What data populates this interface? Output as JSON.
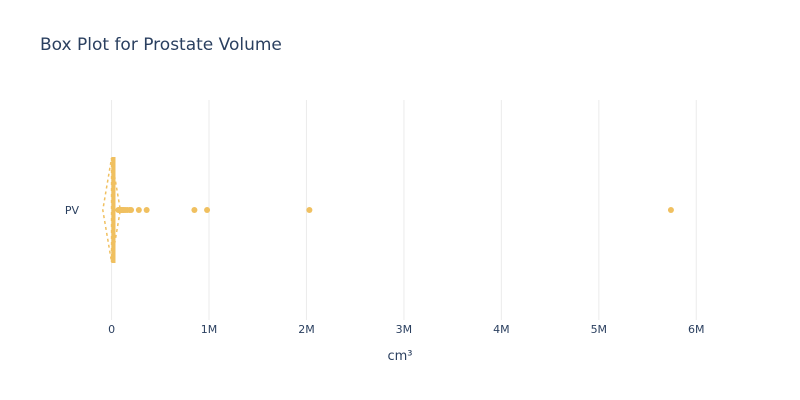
{
  "chart_data": {
    "type": "box",
    "orientation": "horizontal",
    "title": "Box Plot for Prostate Volume",
    "xlabel": "cm³",
    "ylabel": "",
    "xlim": [
      -170000,
      6500000
    ],
    "x_ticks": [
      {
        "value": 0,
        "label": "0"
      },
      {
        "value": 1000000,
        "label": "1M"
      },
      {
        "value": 2000000,
        "label": "2M"
      },
      {
        "value": 3000000,
        "label": "3M"
      },
      {
        "value": 4000000,
        "label": "4M"
      },
      {
        "value": 5000000,
        "label": "5M"
      },
      {
        "value": 6000000,
        "label": "6M"
      }
    ],
    "grid": true,
    "color": "#f0c060",
    "series": [
      {
        "category": "PV",
        "q1": 8000,
        "median": 15000,
        "q3": 30000,
        "lower_fence": 0,
        "upper_fence": 70000,
        "mean": 0,
        "sd_range": [
          -90000,
          90000
        ],
        "outliers": [
          70000,
          78000,
          85000,
          92000,
          100000,
          108000,
          115000,
          125000,
          140000,
          160000,
          185000,
          200000,
          280000,
          360000,
          850000,
          980000,
          2030000,
          5740000
        ]
      }
    ]
  }
}
